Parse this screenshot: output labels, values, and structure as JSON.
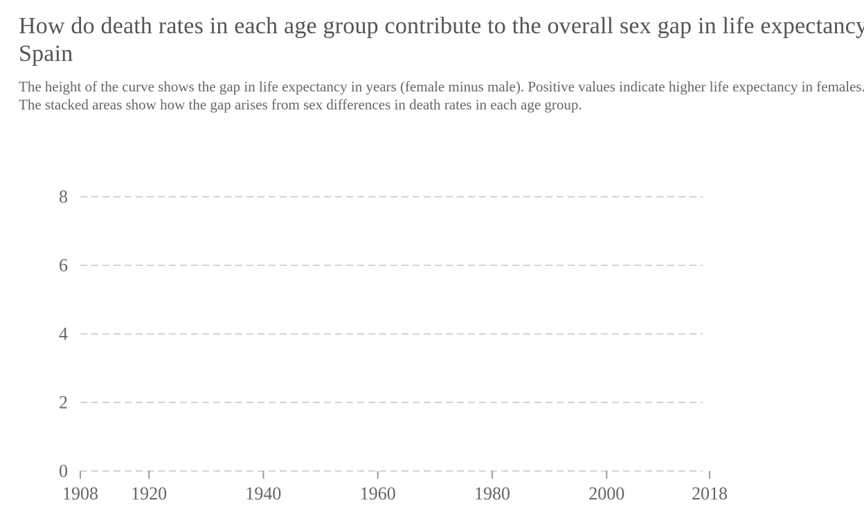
{
  "header": {
    "title": "How do death rates in each age group contribute to the overall sex gap in life expectancy? Spain",
    "subtitle": "The height of the curve shows the gap in life expectancy in years (female minus male). Positive values indicate higher life expectancy in females. The stacked areas show how the gap arises from sex differences in death rates in each age group."
  },
  "chart_data": {
    "type": "area",
    "title": "How do death rates in each age group contribute to the overall sex gap in life expectancy? Spain",
    "subtitle": "The height of the curve shows the gap in life expectancy in years (female minus male). Positive values indicate higher life expectancy in females. The stacked areas show how the gap arises from sex differences in death rates in each age group.",
    "xlabel": "",
    "ylabel": "",
    "xlim": [
      1908,
      2018
    ],
    "ylim": [
      0,
      8
    ],
    "x_ticks": [
      1908,
      1920,
      1940,
      1960,
      1980,
      2000,
      2018
    ],
    "y_ticks": [
      0,
      2,
      4,
      6,
      8
    ],
    "grid": "horizontal dashed",
    "series": []
  },
  "colors": {
    "text": "#555555",
    "tick_text": "#666666",
    "grid": "#d3d3d3",
    "axis_tick": "#999999"
  }
}
